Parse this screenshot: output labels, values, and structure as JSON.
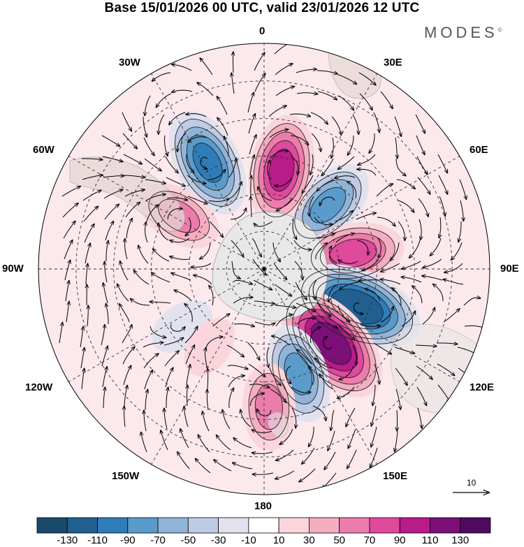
{
  "title": "Base 15/01/2026 00 UTC, valid 23/01/2026 12 UTC",
  "logo": "MODES",
  "logo_mark": "©",
  "longitude_labels": {
    "lon_0": "0",
    "lon_30e": "30E",
    "lon_60e": "60E",
    "lon_90e": "90E",
    "lon_120e": "120E",
    "lon_150e": "150E",
    "lon_180": "180",
    "lon_150w": "150W",
    "lon_120w": "120W",
    "lon_90w": "90W",
    "lon_60w": "60W",
    "lon_30w": "30W"
  },
  "reference_vector": "10",
  "colorbar": {
    "ticks": [
      "-130",
      "-110",
      "-90",
      "-70",
      "-50",
      "-30",
      "-10",
      "10",
      "30",
      "50",
      "70",
      "90",
      "110",
      "130"
    ],
    "colors": [
      "#1a4a6b",
      "#215f91",
      "#2f7db8",
      "#5a9bcb",
      "#8fb4d8",
      "#bfcbe4",
      "#e2e2ef",
      "#ffffff",
      "#fad6dc",
      "#f4aec0",
      "#ec7cab",
      "#de4a9c",
      "#b91b8a",
      "#7c0f78",
      "#4d0a5e"
    ]
  },
  "anomalies": [
    {
      "lon": 45,
      "colat": 36,
      "value": -80
    },
    {
      "lon": 10,
      "colat": 40,
      "value": 100
    },
    {
      "lon": -28,
      "colat": 48,
      "value": -100
    },
    {
      "lon": -58,
      "colat": 40,
      "value": 60
    },
    {
      "lon": 80,
      "colat": 36,
      "value": 85
    },
    {
      "lon": 112,
      "colat": 40,
      "value": -135
    },
    {
      "lon": 138,
      "colat": 40,
      "value": 130
    },
    {
      "lon": 162,
      "colat": 44,
      "value": -80
    },
    {
      "lon": 178,
      "colat": 55,
      "value": 60
    },
    {
      "lon": -125,
      "colat": 40,
      "value": -25
    },
    {
      "lon": -145,
      "colat": 38,
      "value": 20
    }
  ]
}
